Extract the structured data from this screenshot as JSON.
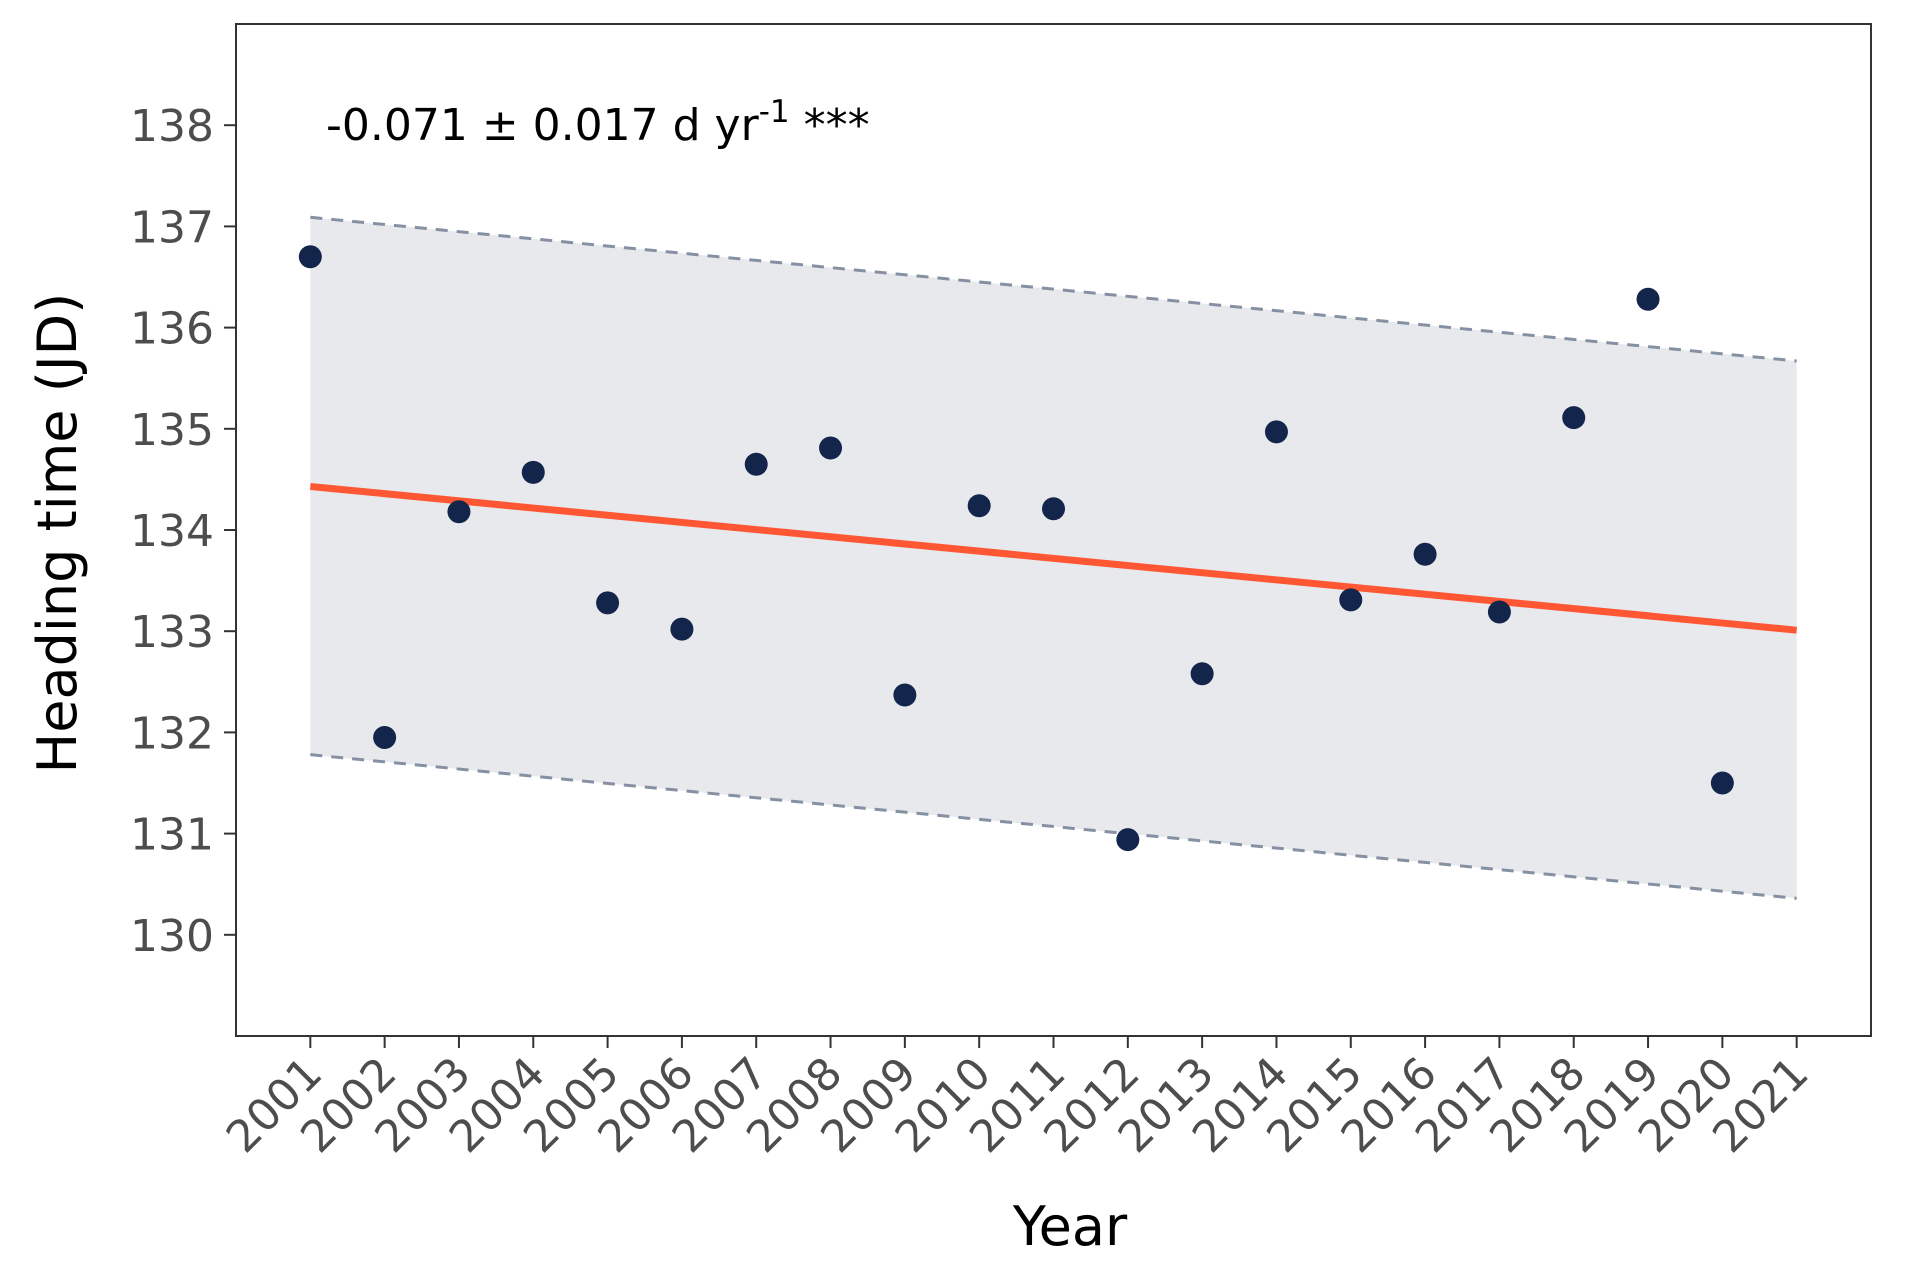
{
  "chart_data": {
    "type": "scatter",
    "xlabel": "Year",
    "ylabel": "Heading time (JD)",
    "annotation": {
      "main": "-0.071 ± 0.017 d yr",
      "superscript": "-1",
      "significance": " ***"
    },
    "x_ticks": [
      "2001",
      "2002",
      "2003",
      "2004",
      "2005",
      "2006",
      "2007",
      "2008",
      "2009",
      "2010",
      "2011",
      "2012",
      "2013",
      "2014",
      "2015",
      "2016",
      "2017",
      "2018",
      "2019",
      "2020",
      "2021"
    ],
    "y_ticks": [
      "130",
      "131",
      "132",
      "133",
      "134",
      "135",
      "136",
      "137",
      "138"
    ],
    "xlim": [
      2000.0,
      2022.0
    ],
    "ylim": [
      129.0,
      139.0
    ],
    "grid": false,
    "points": {
      "x": [
        2001,
        2002,
        2003,
        2004,
        2005,
        2006,
        2007,
        2008,
        2009,
        2010,
        2011,
        2012,
        2013,
        2014,
        2015,
        2016,
        2017,
        2018,
        2019,
        2020
      ],
      "y": [
        136.7,
        131.95,
        134.18,
        134.57,
        133.28,
        133.02,
        134.65,
        134.81,
        132.37,
        134.24,
        134.21,
        130.94,
        132.58,
        134.97,
        133.31,
        133.76,
        133.19,
        135.11,
        136.28,
        131.5
      ]
    },
    "trend_line": {
      "x": [
        2001,
        2021
      ],
      "y": [
        134.43,
        133.01
      ]
    },
    "prediction_band": {
      "x": [
        2001,
        2021
      ],
      "upper": [
        137.09,
        135.67
      ],
      "lower": [
        131.78,
        130.36
      ]
    },
    "colors": {
      "points": "#13254a",
      "trend": "#ff5733",
      "band_fill": "#e8e9ed",
      "band_edge": "#8591a2",
      "axis": "#333333",
      "tick_text": "#4d4d4d"
    }
  }
}
